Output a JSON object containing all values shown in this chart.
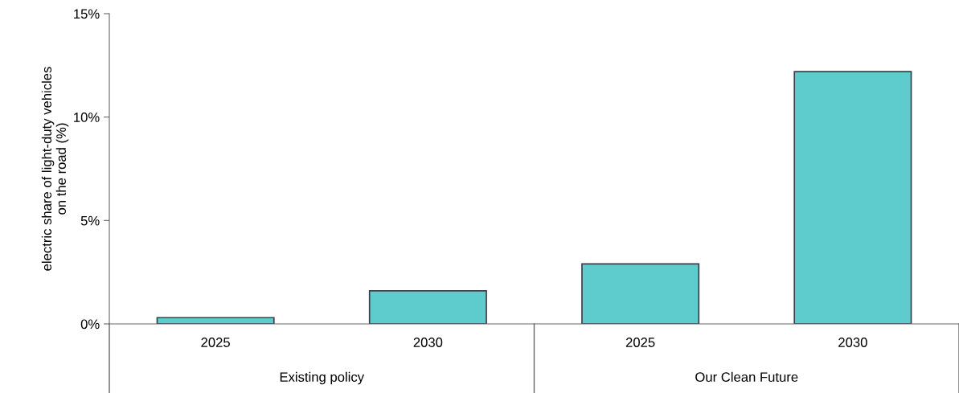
{
  "chart_data": {
    "type": "bar",
    "ylabel": "electric share of light-duty vehicles\non the road (%)",
    "categories": [
      "2025",
      "2030",
      "2025",
      "2030"
    ],
    "values": [
      0.3,
      1.6,
      2.9,
      12.2
    ],
    "color": "#5ecccc",
    "ylim": [
      0,
      15
    ],
    "yticks": [
      {
        "value": 0,
        "label": "0%"
      },
      {
        "value": 5,
        "label": "5%"
      },
      {
        "value": 10,
        "label": "10%"
      },
      {
        "value": 15,
        "label": "15%"
      }
    ],
    "grid": false,
    "legend": false,
    "annotations": [
      "Existing policy",
      "Our Clean Future"
    ]
  }
}
